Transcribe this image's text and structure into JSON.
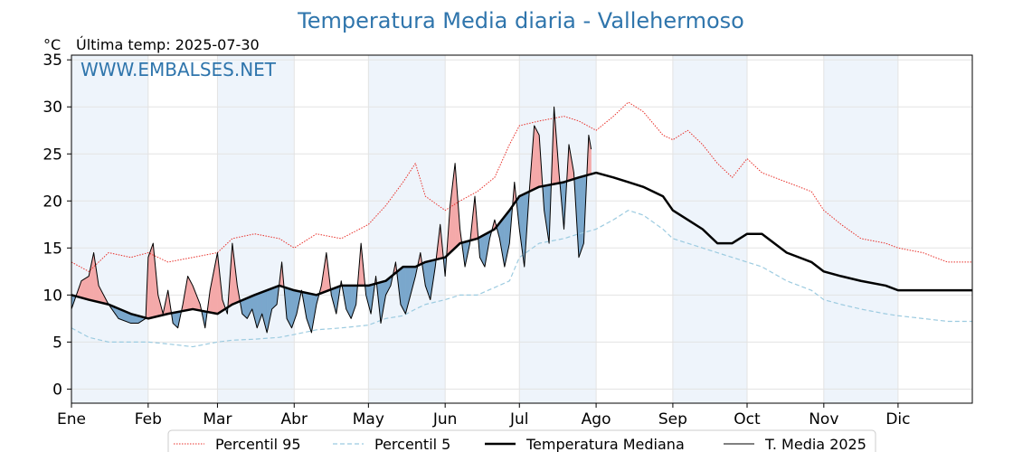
{
  "title": "Temperatura Media diaria - Vallehermoso",
  "unit_label": "°C",
  "last_temp_label": "Última temp: 2025-07-30",
  "watermark": "WWW.EMBALSES.NET",
  "colors": {
    "title": "#2f75ac",
    "p95": "#e8312b",
    "p5": "#9ccbe0",
    "median": "#000000",
    "media2025": "#000000",
    "fill_above": "#f4a9a9",
    "fill_below": "#7aa7cc",
    "month_band": "#eef4fb"
  },
  "chart_data": {
    "type": "line",
    "x_unit": "day_of_year",
    "xlim": [
      1,
      365
    ],
    "ylim": [
      -1.5,
      35.5
    ],
    "grid": true,
    "legend_position": "bottom",
    "x_ticks": [
      {
        "label": "Ene",
        "day": 1
      },
      {
        "label": "Feb",
        "day": 32
      },
      {
        "label": "Mar",
        "day": 60
      },
      {
        "label": "Abr",
        "day": 91
      },
      {
        "label": "May",
        "day": 121
      },
      {
        "label": "Jun",
        "day": 152
      },
      {
        "label": "Jul",
        "day": 182
      },
      {
        "label": "Ago",
        "day": 213
      },
      {
        "label": "Sep",
        "day": 244
      },
      {
        "label": "Oct",
        "day": 274
      },
      {
        "label": "Nov",
        "day": 305
      },
      {
        "label": "Dic",
        "day": 335
      }
    ],
    "y_ticks": [
      0,
      5,
      10,
      15,
      20,
      25,
      30,
      35
    ],
    "series": [
      {
        "name": "Percentil 95",
        "style": "dotted-red",
        "x": [
          1,
          8,
          16,
          25,
          32,
          40,
          50,
          60,
          66,
          75,
          85,
          91,
          100,
          110,
          121,
          128,
          135,
          140,
          144,
          152,
          158,
          165,
          172,
          178,
          182,
          190,
          200,
          206,
          213,
          220,
          226,
          232,
          240,
          244,
          250,
          256,
          262,
          268,
          274,
          280,
          290,
          300,
          305,
          312,
          320,
          330,
          335,
          345,
          355,
          365
        ],
        "y": [
          13.5,
          12.5,
          14.5,
          14,
          14.5,
          13.5,
          14,
          14.5,
          16,
          16.5,
          16,
          15,
          16.5,
          16,
          17.5,
          19.5,
          22,
          24,
          20.5,
          19,
          20,
          21,
          22.5,
          26,
          28,
          28.5,
          29,
          28.5,
          27.5,
          29,
          30.5,
          29.5,
          27,
          26.5,
          27.5,
          26,
          24,
          22.5,
          24.5,
          23,
          22,
          21,
          19,
          17.5,
          16,
          15.5,
          15,
          14.5,
          13.5,
          13.5
        ]
      },
      {
        "name": "Percentil 5",
        "style": "dashed-lightblue",
        "x": [
          1,
          8,
          16,
          25,
          32,
          40,
          50,
          60,
          66,
          75,
          85,
          91,
          100,
          110,
          121,
          128,
          135,
          140,
          144,
          152,
          158,
          165,
          172,
          178,
          182,
          190,
          200,
          206,
          213,
          220,
          226,
          232,
          240,
          244,
          250,
          256,
          262,
          268,
          274,
          280,
          290,
          300,
          305,
          312,
          320,
          330,
          335,
          345,
          355,
          365
        ],
        "y": [
          6.5,
          5.5,
          5,
          5,
          5,
          4.8,
          4.5,
          5,
          5.2,
          5.3,
          5.5,
          5.8,
          6.3,
          6.5,
          6.8,
          7.5,
          7.8,
          8.5,
          9,
          9.5,
          10,
          10,
          10.8,
          11.5,
          14,
          15.5,
          16,
          16.5,
          17,
          18,
          19,
          18.5,
          17,
          16,
          15.5,
          15,
          14.5,
          14,
          13.5,
          13,
          11.5,
          10.5,
          9.5,
          9,
          8.5,
          8,
          7.8,
          7.5,
          7.2,
          7.2
        ]
      },
      {
        "name": "Temperatura Mediana",
        "style": "thick-black",
        "x": [
          1,
          8,
          16,
          25,
          32,
          40,
          50,
          60,
          66,
          75,
          85,
          91,
          100,
          110,
          121,
          128,
          135,
          140,
          144,
          152,
          158,
          165,
          172,
          178,
          182,
          190,
          200,
          206,
          213,
          220,
          226,
          232,
          240,
          244,
          250,
          256,
          262,
          268,
          274,
          280,
          290,
          300,
          305,
          312,
          320,
          330,
          335,
          345,
          355,
          365
        ],
        "y": [
          10,
          9.5,
          9,
          8,
          7.5,
          8,
          8.5,
          8,
          9,
          10,
          11,
          10.5,
          10,
          11,
          11,
          11.5,
          13,
          13,
          13.5,
          14,
          15.5,
          16,
          17,
          19,
          20.5,
          21.5,
          22,
          22.5,
          23,
          22.5,
          22,
          21.5,
          20.5,
          19,
          18,
          17,
          15.5,
          15.5,
          16.5,
          16.5,
          14.5,
          13.5,
          12.5,
          12,
          11.5,
          11,
          10.5,
          10.5,
          10.5,
          10.5
        ]
      },
      {
        "name": "T. Media 2025",
        "style": "thin-black",
        "x": [
          1,
          3,
          5,
          8,
          10,
          12,
          16,
          20,
          25,
          28,
          31,
          32,
          34,
          36,
          38,
          40,
          42,
          44,
          46,
          48,
          50,
          53,
          55,
          57,
          60,
          62,
          64,
          66,
          68,
          70,
          72,
          74,
          76,
          78,
          80,
          82,
          84,
          86,
          88,
          90,
          92,
          94,
          96,
          98,
          100,
          102,
          104,
          106,
          108,
          110,
          112,
          114,
          116,
          118,
          120,
          122,
          124,
          126,
          128,
          130,
          132,
          134,
          136,
          138,
          140,
          142,
          144,
          146,
          148,
          150,
          152,
          154,
          156,
          158,
          160,
          162,
          164,
          166,
          168,
          170,
          172,
          174,
          176,
          178,
          180,
          182,
          184,
          186,
          188,
          190,
          192,
          194,
          196,
          198,
          200,
          202,
          204,
          206,
          208,
          210,
          211
        ],
        "y": [
          8.5,
          10,
          11.5,
          12,
          14.5,
          11,
          9,
          7.5,
          7,
          7,
          7.5,
          14,
          15.5,
          10,
          8,
          10.5,
          7,
          6.5,
          9,
          12,
          11,
          9,
          6.5,
          10.5,
          14.5,
          9.5,
          8,
          15.5,
          11,
          8,
          7.5,
          8.5,
          6.5,
          8,
          6,
          8.5,
          9,
          13.5,
          7.5,
          6.5,
          8,
          10.5,
          7.5,
          6,
          9,
          11,
          14.5,
          10,
          8,
          11.5,
          8.5,
          7.5,
          9,
          15.5,
          10,
          8,
          12,
          7,
          10,
          11,
          13.5,
          9,
          8,
          10,
          12,
          14.5,
          11,
          9.5,
          13,
          17.5,
          12,
          19.5,
          24,
          17,
          13,
          15.5,
          20.5,
          14,
          13,
          16,
          18,
          16,
          13,
          15.5,
          22,
          17,
          13,
          21,
          28,
          27,
          19,
          15.5,
          30,
          23,
          17,
          26,
          23,
          14,
          15.5,
          27,
          25.5
        ]
      }
    ]
  },
  "legend": [
    {
      "label": "Percentil 95",
      "icon": "dotted-red-line"
    },
    {
      "label": "Percentil 5",
      "icon": "dashed-lightblue-line"
    },
    {
      "label": "Temperatura Mediana",
      "icon": "thick-black-line"
    },
    {
      "label": "T. Media 2025",
      "icon": "thin-black-line"
    }
  ]
}
